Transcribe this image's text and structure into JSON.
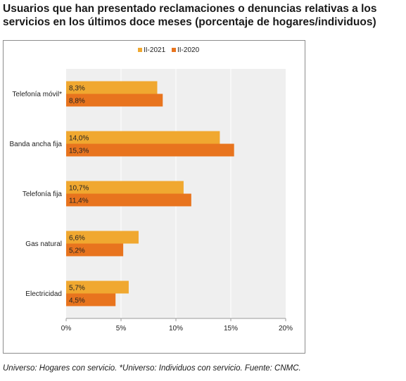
{
  "title": "Usuarios que han presentado reclamaciones o denuncias relativas a los servicios en los últimos doce meses (porcentaje de hogares/individuos)",
  "footnote": "Universo: Hogares con servicio. *Universo: Individuos con servicio. Fuente: CNMC.",
  "colors": {
    "II-2021": "#f0a830",
    "II-2020": "#e8741e",
    "plot_bg": "#efefef",
    "grid": "#ffffff"
  },
  "chart_data": {
    "type": "bar",
    "orientation": "horizontal",
    "title": "",
    "xlabel": "",
    "ylabel": "",
    "categories": [
      "Telefonía móvil*",
      "Banda ancha fija",
      "Telefonía fija",
      "Gas natural",
      "Electricidad"
    ],
    "series": [
      {
        "name": "II-2021",
        "values": [
          8.3,
          14.0,
          10.7,
          6.6,
          5.7
        ],
        "labels": [
          "8,3%",
          "14,0%",
          "10,7%",
          "6,6%",
          "5,7%"
        ]
      },
      {
        "name": "II-2020",
        "values": [
          8.8,
          15.3,
          11.4,
          5.2,
          4.5
        ],
        "labels": [
          "8,8%",
          "15,3%",
          "11,4%",
          "5,2%",
          "4,5%"
        ]
      }
    ],
    "xlim": [
      0,
      20
    ],
    "xticks": [
      0,
      5,
      10,
      15,
      20
    ],
    "xtick_labels": [
      "0%",
      "5%",
      "10%",
      "15%",
      "20%"
    ],
    "grid": true,
    "legend_position": "top-center"
  }
}
